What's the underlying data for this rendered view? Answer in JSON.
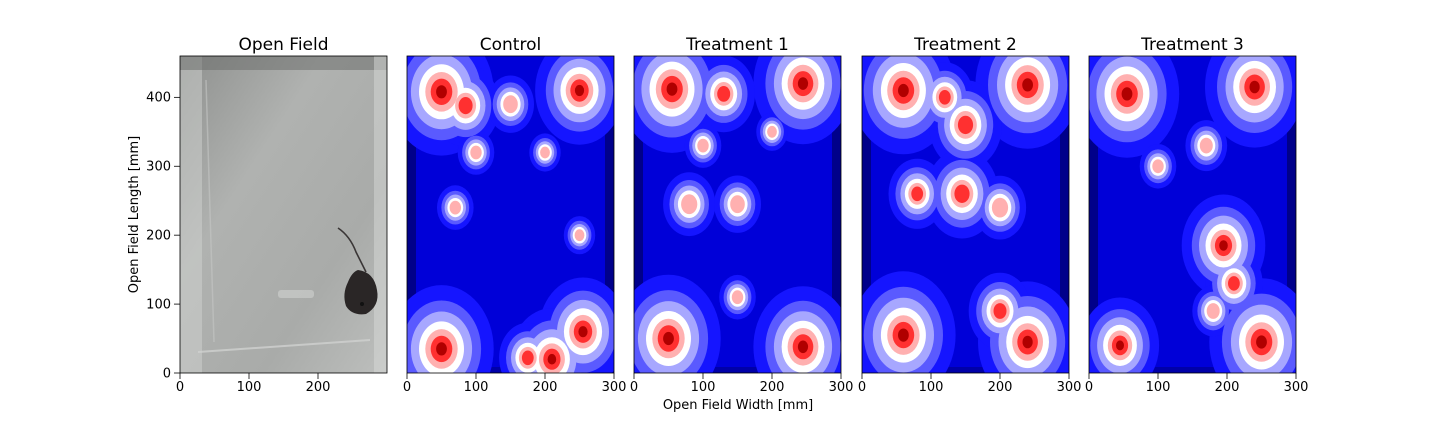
{
  "figure": {
    "xlabel": "Open Field Width [mm]",
    "ylabel": "Open Field Length [mm]"
  },
  "chart_data": [
    {
      "type": "image",
      "title": "Open Field",
      "xlim": [
        0,
        300
      ],
      "ylim": [
        0,
        460
      ],
      "xticks": [
        0,
        100,
        200
      ],
      "yticks": [
        0,
        100,
        200,
        300,
        400
      ],
      "xticklabels": [
        "0",
        "100",
        "200"
      ],
      "yticklabels": [
        "0",
        "100",
        "200",
        "300",
        "400"
      ],
      "colors": {
        "floor": "#a8aaa8",
        "mouse": "#2a2626"
      }
    },
    {
      "type": "heatmap",
      "title": "Control",
      "xlim": [
        0,
        300
      ],
      "ylim": [
        0,
        460
      ],
      "xticks": [
        0,
        100,
        200,
        300
      ],
      "xticklabels": [
        "0",
        "100",
        "200",
        "300"
      ],
      "colormap": "seismic",
      "hotspots": [
        {
          "x": 50,
          "y": 408,
          "w": 1.0
        },
        {
          "x": 85,
          "y": 388,
          "w": 0.65
        },
        {
          "x": 250,
          "y": 410,
          "w": 0.85
        },
        {
          "x": 50,
          "y": 35,
          "w": 1.0
        },
        {
          "x": 255,
          "y": 60,
          "w": 0.85
        },
        {
          "x": 210,
          "y": 20,
          "w": 0.8
        },
        {
          "x": 175,
          "y": 22,
          "w": 0.55
        },
        {
          "x": 150,
          "y": 390,
          "w": 0.45
        },
        {
          "x": 100,
          "y": 320,
          "w": 0.35
        },
        {
          "x": 70,
          "y": 240,
          "w": 0.35
        },
        {
          "x": 250,
          "y": 200,
          "w": 0.3
        },
        {
          "x": 200,
          "y": 320,
          "w": 0.3
        }
      ]
    },
    {
      "type": "heatmap",
      "title": "Treatment 1",
      "xlim": [
        0,
        300
      ],
      "ylim": [
        0,
        460
      ],
      "xticks": [
        0,
        100,
        200,
        300
      ],
      "xticklabels": [
        "0",
        "100",
        "200",
        "300"
      ],
      "colormap": "seismic",
      "hotspots": [
        {
          "x": 55,
          "y": 412,
          "w": 1.0
        },
        {
          "x": 245,
          "y": 420,
          "w": 0.95
        },
        {
          "x": 130,
          "y": 405,
          "w": 0.6
        },
        {
          "x": 50,
          "y": 50,
          "w": 1.0
        },
        {
          "x": 245,
          "y": 38,
          "w": 0.95
        },
        {
          "x": 80,
          "y": 245,
          "w": 0.5
        },
        {
          "x": 150,
          "y": 245,
          "w": 0.45
        },
        {
          "x": 100,
          "y": 330,
          "w": 0.35
        },
        {
          "x": 200,
          "y": 350,
          "w": 0.3
        },
        {
          "x": 150,
          "y": 110,
          "w": 0.35
        }
      ]
    },
    {
      "type": "heatmap",
      "title": "Treatment 2",
      "xlim": [
        0,
        300
      ],
      "ylim": [
        0,
        460
      ],
      "xticks": [
        0,
        100,
        200,
        300
      ],
      "xticklabels": [
        "0",
        "100",
        "200",
        "300"
      ],
      "colormap": "seismic",
      "hotspots": [
        {
          "x": 60,
          "y": 410,
          "w": 1.0
        },
        {
          "x": 240,
          "y": 418,
          "w": 1.0
        },
        {
          "x": 150,
          "y": 360,
          "w": 0.7
        },
        {
          "x": 145,
          "y": 260,
          "w": 0.7
        },
        {
          "x": 80,
          "y": 260,
          "w": 0.55
        },
        {
          "x": 200,
          "y": 240,
          "w": 0.5
        },
        {
          "x": 60,
          "y": 55,
          "w": 1.0
        },
        {
          "x": 240,
          "y": 45,
          "w": 0.95
        },
        {
          "x": 200,
          "y": 90,
          "w": 0.6
        },
        {
          "x": 120,
          "y": 400,
          "w": 0.55
        }
      ]
    },
    {
      "type": "heatmap",
      "title": "Treatment 3",
      "xlim": [
        0,
        300
      ],
      "ylim": [
        0,
        460
      ],
      "xticks": [
        0,
        100,
        200,
        300
      ],
      "xticklabels": [
        "0",
        "100",
        "200",
        "300"
      ],
      "colormap": "seismic",
      "hotspots": [
        {
          "x": 55,
          "y": 405,
          "w": 1.0
        },
        {
          "x": 240,
          "y": 415,
          "w": 0.95
        },
        {
          "x": 250,
          "y": 45,
          "w": 1.0
        },
        {
          "x": 195,
          "y": 185,
          "w": 0.8
        },
        {
          "x": 210,
          "y": 130,
          "w": 0.55
        },
        {
          "x": 45,
          "y": 40,
          "w": 0.75
        },
        {
          "x": 170,
          "y": 330,
          "w": 0.4
        },
        {
          "x": 100,
          "y": 300,
          "w": 0.35
        },
        {
          "x": 180,
          "y": 90,
          "w": 0.4
        }
      ]
    }
  ]
}
